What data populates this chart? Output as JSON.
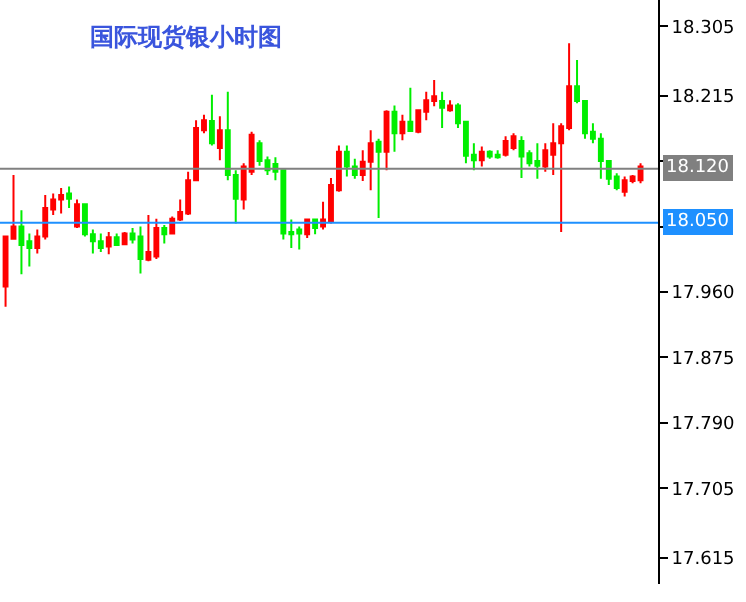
{
  "chart_data": {
    "type": "candlestick",
    "title": "国际现货银小时图",
    "categories": [
      null,
      null,
      null,
      null,
      null,
      null,
      null,
      null,
      null,
      null,
      null,
      null,
      null,
      null,
      null,
      null,
      null,
      null,
      null,
      null,
      null,
      null,
      null,
      null,
      null,
      null,
      null,
      null,
      null,
      null,
      null,
      null,
      null,
      null,
      null,
      null,
      null,
      null,
      null,
      null,
      null,
      null,
      null,
      null,
      null,
      null,
      null,
      null,
      null,
      null,
      null,
      null,
      null,
      null,
      null,
      null,
      null,
      null,
      null,
      null,
      null,
      null,
      null,
      null,
      null,
      null,
      null,
      null,
      null,
      null,
      null,
      null,
      null,
      null,
      null,
      null,
      null,
      null,
      null,
      null,
      null
    ],
    "ohlc": [
      [
        17.967,
        18.032,
        17.941,
        18.032
      ],
      [
        18.029,
        18.112,
        18.028,
        18.045
      ],
      [
        18.045,
        18.066,
        17.983,
        18.021
      ],
      [
        18.026,
        18.036,
        17.993,
        18.017
      ],
      [
        18.017,
        18.041,
        18.01,
        18.032
      ],
      [
        18.032,
        18.086,
        18.028,
        18.069
      ],
      [
        18.067,
        18.088,
        18.06,
        18.08
      ],
      [
        18.08,
        18.095,
        18.062,
        18.086
      ],
      [
        18.088,
        18.097,
        18.069,
        18.081
      ],
      [
        18.045,
        18.08,
        18.043,
        18.074
      ],
      [
        18.074,
        18.074,
        18.032,
        18.035
      ],
      [
        18.035,
        18.041,
        18.01,
        18.026
      ],
      [
        18.026,
        18.036,
        18.012,
        18.017
      ],
      [
        18.019,
        18.038,
        18.009,
        18.031
      ],
      [
        18.031,
        18.036,
        18.021,
        18.021
      ],
      [
        18.022,
        18.038,
        18.021,
        18.036
      ],
      [
        18.036,
        18.043,
        18.023,
        18.028
      ],
      [
        18.032,
        18.045,
        17.984,
        18.003
      ],
      [
        18.002,
        18.06,
        18.0,
        18.012
      ],
      [
        18.006,
        18.055,
        18.003,
        18.043
      ],
      [
        18.043,
        18.047,
        18.023,
        18.035
      ],
      [
        18.036,
        18.058,
        18.035,
        18.055
      ],
      [
        18.054,
        18.08,
        18.052,
        18.064
      ],
      [
        18.062,
        18.116,
        18.06,
        18.105
      ],
      [
        18.105,
        18.183,
        18.104,
        18.173
      ],
      [
        18.17,
        18.19,
        18.166,
        18.183
      ],
      [
        18.182,
        18.216,
        18.15,
        18.153
      ],
      [
        18.147,
        18.188,
        18.131,
        18.17
      ],
      [
        18.17,
        18.22,
        18.105,
        18.112
      ],
      [
        18.112,
        18.118,
        18.049,
        18.081
      ],
      [
        18.08,
        18.127,
        18.067,
        18.123
      ],
      [
        18.116,
        18.168,
        18.112,
        18.164
      ],
      [
        18.153,
        18.157,
        18.124,
        18.13
      ],
      [
        18.131,
        18.136,
        18.112,
        18.118
      ],
      [
        18.126,
        18.135,
        18.105,
        18.116
      ],
      [
        18.118,
        18.118,
        18.028,
        18.036
      ],
      [
        18.038,
        18.054,
        18.017,
        18.035
      ],
      [
        18.041,
        18.045,
        18.015,
        18.036
      ],
      [
        18.035,
        18.054,
        18.03,
        18.054
      ],
      [
        18.054,
        18.054,
        18.035,
        18.043
      ],
      [
        18.045,
        18.077,
        18.041,
        18.054
      ],
      [
        18.052,
        18.108,
        18.049,
        18.099
      ],
      [
        18.092,
        18.15,
        18.09,
        18.142
      ],
      [
        18.142,
        18.15,
        18.11,
        18.123
      ],
      [
        18.123,
        18.133,
        18.107,
        18.112
      ],
      [
        18.112,
        18.144,
        18.104,
        18.129
      ],
      [
        18.129,
        18.17,
        18.092,
        18.153
      ],
      [
        18.155,
        18.159,
        18.056,
        18.142
      ],
      [
        18.142,
        18.196,
        18.118,
        18.194
      ],
      [
        18.194,
        18.202,
        18.142,
        18.166
      ],
      [
        18.166,
        18.19,
        18.157,
        18.181
      ],
      [
        18.181,
        18.225,
        18.168,
        18.169
      ],
      [
        18.168,
        18.196,
        18.166,
        18.196
      ],
      [
        18.194,
        18.22,
        18.183,
        18.209
      ],
      [
        18.208,
        18.235,
        18.201,
        18.214
      ],
      [
        18.208,
        18.22,
        18.173,
        18.199
      ],
      [
        18.196,
        18.209,
        18.194,
        18.202
      ],
      [
        18.202,
        18.205,
        18.173,
        18.179
      ],
      [
        18.181,
        18.181,
        18.127,
        18.137
      ],
      [
        18.138,
        18.153,
        18.118,
        18.131
      ],
      [
        18.131,
        18.149,
        18.123,
        18.142
      ],
      [
        18.142,
        18.144,
        18.133,
        18.136
      ],
      [
        18.138,
        18.144,
        18.133,
        18.135
      ],
      [
        18.138,
        18.162,
        18.136,
        18.156
      ],
      [
        18.147,
        18.166,
        18.144,
        18.162
      ],
      [
        18.156,
        18.162,
        18.108,
        18.136
      ],
      [
        18.14,
        18.144,
        18.123,
        18.127
      ],
      [
        18.13,
        18.153,
        18.107,
        18.124
      ],
      [
        18.123,
        18.153,
        18.116,
        18.144
      ],
      [
        18.138,
        18.179,
        18.112,
        18.153
      ],
      [
        18.153,
        18.179,
        18.038,
        18.175
      ],
      [
        18.173,
        18.283,
        18.17,
        18.227
      ],
      [
        18.227,
        18.261,
        18.205,
        18.208
      ],
      [
        18.208,
        18.209,
        18.159,
        18.166
      ],
      [
        18.168,
        18.179,
        18.153,
        18.159
      ],
      [
        18.159,
        18.166,
        18.107,
        18.13
      ],
      [
        18.13,
        18.131,
        18.099,
        18.107
      ],
      [
        18.11,
        18.114,
        18.092,
        18.095
      ],
      [
        18.09,
        18.11,
        18.084,
        18.105
      ],
      [
        18.104,
        18.112,
        18.101,
        18.11
      ],
      [
        18.105,
        18.127,
        18.101,
        18.123
      ]
    ],
    "colors": [
      "#ff0000",
      "#ff0000",
      "#00ee00",
      "#00ee00",
      "#ff0000",
      "#ff0000",
      "#ff0000",
      "#ff0000",
      "#00ee00",
      "#ff0000",
      "#00ee00",
      "#00ee00",
      "#00ee00",
      "#ff0000",
      "#00ee00",
      "#ff0000",
      "#00ee00",
      "#00ee00",
      "#ff0000",
      "#ff0000",
      "#00ee00",
      "#ff0000",
      "#ff0000",
      "#ff0000",
      "#ff0000",
      "#ff0000",
      "#00ee00",
      "#ff0000",
      "#00ee00",
      "#00ee00",
      "#ff0000",
      "#ff0000",
      "#00ee00",
      "#00ee00",
      "#00ee00",
      "#00ee00",
      "#00ee00",
      "#00ee00",
      "#ff0000",
      "#00ee00",
      "#ff0000",
      "#ff0000",
      "#ff0000",
      "#00ee00",
      "#00ee00",
      "#ff0000",
      "#ff0000",
      "#00ee00",
      "#ff0000",
      "#00ee00",
      "#ff0000",
      "#00ee00",
      "#ff0000",
      "#ff0000",
      "#ff0000",
      "#00ee00",
      "#ff0000",
      "#00ee00",
      "#00ee00",
      "#00ee00",
      "#ff0000",
      "#00ee00",
      "#00ee00",
      "#ff0000",
      "#ff0000",
      "#00ee00",
      "#00ee00",
      "#00ee00",
      "#ff0000",
      "#ff0000",
      "#ff0000",
      "#ff0000",
      "#00ee00",
      "#00ee00",
      "#00ee00",
      "#00ee00",
      "#00ee00",
      "#00ee00",
      "#ff0000",
      "#ff0000",
      "#ff0000"
    ],
    "ylim": [
      17.581,
      18.339
    ],
    "yticks": [
      18.305,
      18.215,
      {
        "value": 18.13,
        "label": null
      },
      {
        "value": 18.045,
        "label": null
      },
      {
        "value": 17.96,
        "label": "17.960"
      },
      17.875,
      {
        "value": 17.79,
        "label": "17.790"
      },
      17.705,
      17.615
    ],
    "ref_lines": [
      {
        "axis": "y",
        "value": 18.12,
        "label": "18.120",
        "color": "#808080"
      },
      {
        "axis": "y",
        "value": 18.05,
        "label": "18.050",
        "color": "#1e90ff"
      }
    ],
    "grid": false,
    "tick_labels": "y"
  }
}
